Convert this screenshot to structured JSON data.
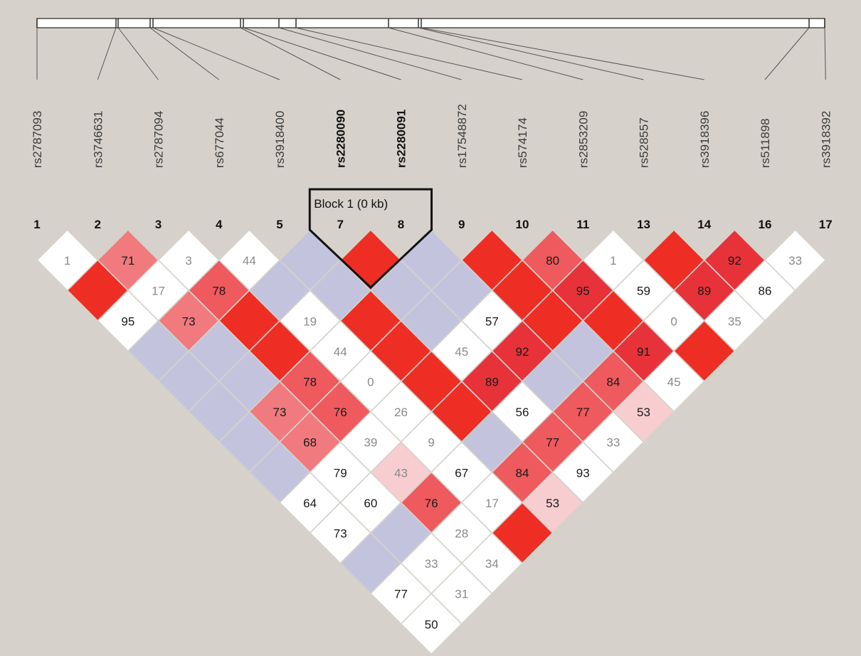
{
  "snps": [
    {
      "index": "1",
      "name": "rs2787093",
      "bold": false
    },
    {
      "index": "2",
      "name": "rs3746631",
      "bold": false
    },
    {
      "index": "3",
      "name": "rs2787094",
      "bold": false
    },
    {
      "index": "4",
      "name": "rs677044",
      "bold": false
    },
    {
      "index": "5",
      "name": "rs3918400",
      "bold": false
    },
    {
      "index": "7",
      "name": "rs2280090",
      "bold": true
    },
    {
      "index": "8",
      "name": "rs2280091",
      "bold": true
    },
    {
      "index": "9",
      "name": "rs17548872",
      "bold": false
    },
    {
      "index": "10",
      "name": "rs574174",
      "bold": false
    },
    {
      "index": "11",
      "name": "rs2853209",
      "bold": false
    },
    {
      "index": "13",
      "name": "rs528557",
      "bold": false
    },
    {
      "index": "14",
      "name": "rs3918396",
      "bold": false
    },
    {
      "index": "16",
      "name": "rs511898",
      "bold": false
    },
    {
      "index": "17",
      "name": "rs3918392",
      "bold": false
    }
  ],
  "block": {
    "label": "Block 1 (0 kb)",
    "from_snp": 5,
    "to_snp": 6
  },
  "colors": {
    "background": "#d6d2cb",
    "red": "#ee2e24",
    "blue": "#c3c3de",
    "white": "#ffffff"
  },
  "ld_matrix": [
    {
      "i": 0,
      "j": 1,
      "value": "1",
      "shade": "white",
      "text": "grey"
    },
    {
      "i": 1,
      "j": 2,
      "value": "71",
      "shade": "mid",
      "text": "dark"
    },
    {
      "i": 2,
      "j": 3,
      "value": "3",
      "shade": "white",
      "text": "grey"
    },
    {
      "i": 3,
      "j": 4,
      "value": "44",
      "shade": "white",
      "text": "grey"
    },
    {
      "i": 4,
      "j": 5,
      "value": "",
      "shade": "blue",
      "text": "none"
    },
    {
      "i": 5,
      "j": 6,
      "value": "",
      "shade": "red",
      "text": "none"
    },
    {
      "i": 6,
      "j": 7,
      "value": "",
      "shade": "blue",
      "text": "none"
    },
    {
      "i": 7,
      "j": 8,
      "value": "",
      "shade": "red",
      "text": "none"
    },
    {
      "i": 8,
      "j": 9,
      "value": "80",
      "shade": "strong",
      "text": "dark"
    },
    {
      "i": 9,
      "j": 10,
      "value": "1",
      "shade": "white",
      "text": "grey"
    },
    {
      "i": 10,
      "j": 11,
      "value": "",
      "shade": "red",
      "text": "none"
    },
    {
      "i": 11,
      "j": 12,
      "value": "92",
      "shade": "darkred",
      "text": "dark"
    },
    {
      "i": 12,
      "j": 13,
      "value": "33",
      "shade": "white",
      "text": "grey"
    },
    {
      "i": 0,
      "j": 2,
      "value": "",
      "shade": "red",
      "text": "none"
    },
    {
      "i": 1,
      "j": 3,
      "value": "17",
      "shade": "white",
      "text": "grey"
    },
    {
      "i": 2,
      "j": 4,
      "value": "78",
      "shade": "strong",
      "text": "dark"
    },
    {
      "i": 3,
      "j": 5,
      "value": "",
      "shade": "blue",
      "text": "none"
    },
    {
      "i": 4,
      "j": 6,
      "value": "",
      "shade": "blue",
      "text": "none"
    },
    {
      "i": 5,
      "j": 7,
      "value": "",
      "shade": "blue",
      "text": "none"
    },
    {
      "i": 6,
      "j": 8,
      "value": "",
      "shade": "blue",
      "text": "none"
    },
    {
      "i": 7,
      "j": 9,
      "value": "",
      "shade": "red",
      "text": "none"
    },
    {
      "i": 8,
      "j": 10,
      "value": "95",
      "shade": "darkred",
      "text": "dark"
    },
    {
      "i": 9,
      "j": 11,
      "value": "59",
      "shade": "white",
      "text": "dark"
    },
    {
      "i": 10,
      "j": 12,
      "value": "89",
      "shade": "darkred",
      "text": "dark"
    },
    {
      "i": 11,
      "j": 13,
      "value": "86",
      "shade": "white",
      "text": "dark"
    },
    {
      "i": 0,
      "j": 3,
      "value": "95",
      "shade": "white",
      "text": "dark"
    },
    {
      "i": 1,
      "j": 4,
      "value": "73",
      "shade": "mid",
      "text": "dark"
    },
    {
      "i": 2,
      "j": 5,
      "value": "",
      "shade": "red",
      "text": "none"
    },
    {
      "i": 3,
      "j": 6,
      "value": "19",
      "shade": "white",
      "text": "grey"
    },
    {
      "i": 4,
      "j": 7,
      "value": "",
      "shade": "red",
      "text": "none"
    },
    {
      "i": 5,
      "j": 8,
      "value": "",
      "shade": "blue",
      "text": "none"
    },
    {
      "i": 6,
      "j": 9,
      "value": "57",
      "shade": "white",
      "text": "dark"
    },
    {
      "i": 7,
      "j": 10,
      "value": "",
      "shade": "red",
      "text": "none"
    },
    {
      "i": 8,
      "j": 11,
      "value": "",
      "shade": "red",
      "text": "none"
    },
    {
      "i": 9,
      "j": 12,
      "value": "0",
      "shade": "white",
      "text": "grey"
    },
    {
      "i": 10,
      "j": 13,
      "value": "35",
      "shade": "white",
      "text": "grey"
    },
    {
      "i": 0,
      "j": 4,
      "value": "",
      "shade": "blue",
      "text": "none"
    },
    {
      "i": 1,
      "j": 5,
      "value": "",
      "shade": "blue",
      "text": "none"
    },
    {
      "i": 2,
      "j": 6,
      "value": "",
      "shade": "red",
      "text": "none"
    },
    {
      "i": 3,
      "j": 7,
      "value": "44",
      "shade": "white",
      "text": "grey"
    },
    {
      "i": 4,
      "j": 8,
      "value": "",
      "shade": "red",
      "text": "none"
    },
    {
      "i": 5,
      "j": 9,
      "value": "45",
      "shade": "white",
      "text": "grey"
    },
    {
      "i": 6,
      "j": 10,
      "value": "92",
      "shade": "darkred",
      "text": "dark"
    },
    {
      "i": 7,
      "j": 11,
      "value": "",
      "shade": "blue",
      "text": "none"
    },
    {
      "i": 8,
      "j": 12,
      "value": "91",
      "shade": "darkred",
      "text": "dark"
    },
    {
      "i": 9,
      "j": 13,
      "value": "",
      "shade": "red",
      "text": "none"
    },
    {
      "i": 0,
      "j": 5,
      "value": "",
      "shade": "blue",
      "text": "none"
    },
    {
      "i": 1,
      "j": 6,
      "value": "",
      "shade": "blue",
      "text": "none"
    },
    {
      "i": 2,
      "j": 7,
      "value": "78",
      "shade": "strong",
      "text": "dark"
    },
    {
      "i": 3,
      "j": 8,
      "value": "0",
      "shade": "white",
      "text": "grey"
    },
    {
      "i": 4,
      "j": 9,
      "value": "",
      "shade": "red",
      "text": "none"
    },
    {
      "i": 5,
      "j": 10,
      "value": "89",
      "shade": "darkred",
      "text": "dark"
    },
    {
      "i": 6,
      "j": 11,
      "value": "",
      "shade": "blue",
      "text": "none"
    },
    {
      "i": 7,
      "j": 12,
      "value": "84",
      "shade": "strong",
      "text": "dark"
    },
    {
      "i": 8,
      "j": 13,
      "value": "45",
      "shade": "white",
      "text": "grey"
    },
    {
      "i": 0,
      "j": 6,
      "value": "",
      "shade": "blue",
      "text": "none"
    },
    {
      "i": 1,
      "j": 7,
      "value": "73",
      "shade": "mid",
      "text": "dark"
    },
    {
      "i": 2,
      "j": 8,
      "value": "76",
      "shade": "strong",
      "text": "dark"
    },
    {
      "i": 3,
      "j": 9,
      "value": "26",
      "shade": "white",
      "text": "grey"
    },
    {
      "i": 4,
      "j": 10,
      "value": "",
      "shade": "red",
      "text": "none"
    },
    {
      "i": 5,
      "j": 11,
      "value": "56",
      "shade": "white",
      "text": "dark"
    },
    {
      "i": 6,
      "j": 12,
      "value": "77",
      "shade": "strong",
      "text": "dark"
    },
    {
      "i": 7,
      "j": 13,
      "value": "53",
      "shade": "pale",
      "text": "dark"
    },
    {
      "i": 0,
      "j": 7,
      "value": "",
      "shade": "blue",
      "text": "none"
    },
    {
      "i": 1,
      "j": 8,
      "value": "68",
      "shade": "mid",
      "text": "dark"
    },
    {
      "i": 2,
      "j": 9,
      "value": "39",
      "shade": "white",
      "text": "grey"
    },
    {
      "i": 3,
      "j": 10,
      "value": "9",
      "shade": "white",
      "text": "grey"
    },
    {
      "i": 4,
      "j": 11,
      "value": "",
      "shade": "blue",
      "text": "none"
    },
    {
      "i": 5,
      "j": 12,
      "value": "77",
      "shade": "strong",
      "text": "dark"
    },
    {
      "i": 6,
      "j": 13,
      "value": "33",
      "shade": "white",
      "text": "grey"
    },
    {
      "i": 0,
      "j": 8,
      "value": "",
      "shade": "blue",
      "text": "none"
    },
    {
      "i": 1,
      "j": 9,
      "value": "79",
      "shade": "white",
      "text": "dark"
    },
    {
      "i": 2,
      "j": 10,
      "value": "43",
      "shade": "pale",
      "text": "grey"
    },
    {
      "i": 3,
      "j": 11,
      "value": "67",
      "shade": "white",
      "text": "dark"
    },
    {
      "i": 4,
      "j": 12,
      "value": "84",
      "shade": "strong",
      "text": "dark"
    },
    {
      "i": 5,
      "j": 13,
      "value": "93",
      "shade": "white",
      "text": "dark"
    },
    {
      "i": 0,
      "j": 9,
      "value": "64",
      "shade": "white",
      "text": "dark"
    },
    {
      "i": 1,
      "j": 10,
      "value": "60",
      "shade": "white",
      "text": "dark"
    },
    {
      "i": 2,
      "j": 11,
      "value": "76",
      "shade": "strong",
      "text": "dark"
    },
    {
      "i": 3,
      "j": 12,
      "value": "17",
      "shade": "white",
      "text": "grey"
    },
    {
      "i": 4,
      "j": 13,
      "value": "53",
      "shade": "pale",
      "text": "dark"
    },
    {
      "i": 0,
      "j": 10,
      "value": "73",
      "shade": "white",
      "text": "dark"
    },
    {
      "i": 1,
      "j": 11,
      "value": "",
      "shade": "blue",
      "text": "none"
    },
    {
      "i": 2,
      "j": 12,
      "value": "28",
      "shade": "white",
      "text": "grey"
    },
    {
      "i": 3,
      "j": 13,
      "value": "",
      "shade": "red",
      "text": "none"
    },
    {
      "i": 0,
      "j": 11,
      "value": "",
      "shade": "blue",
      "text": "none"
    },
    {
      "i": 1,
      "j": 12,
      "value": "33",
      "shade": "white",
      "text": "grey"
    },
    {
      "i": 2,
      "j": 13,
      "value": "34",
      "shade": "white",
      "text": "grey"
    },
    {
      "i": 0,
      "j": 12,
      "value": "77",
      "shade": "white",
      "text": "dark"
    },
    {
      "i": 1,
      "j": 13,
      "value": "31",
      "shade": "white",
      "text": "grey"
    },
    {
      "i": 0,
      "j": 13,
      "value": "50",
      "shade": "white",
      "text": "dark"
    }
  ]
}
